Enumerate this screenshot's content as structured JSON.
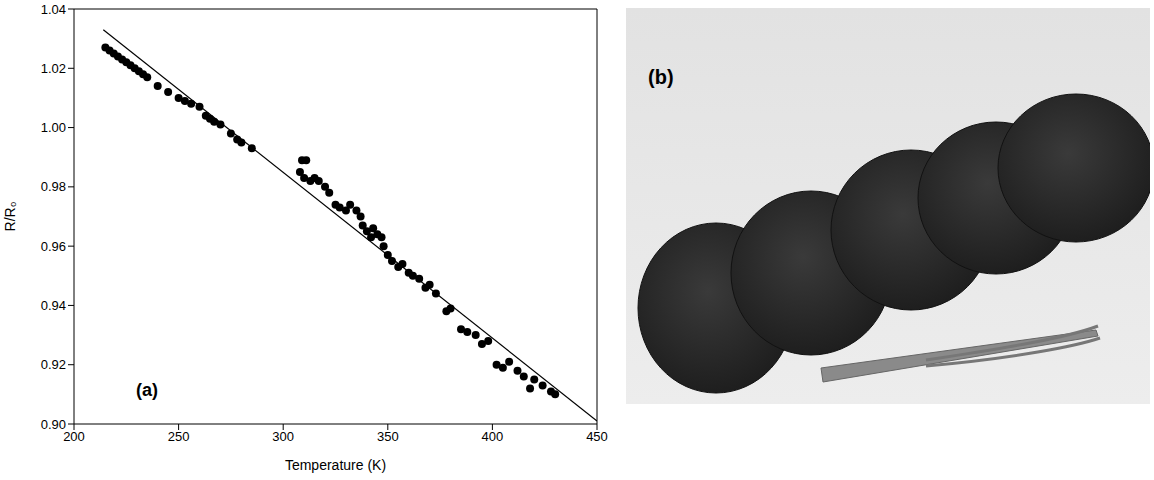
{
  "chart_data": {
    "type": "scatter",
    "panel_label": "(a)",
    "x_label": "Temperature (K)",
    "y_label": "R/R₀",
    "xlim": [
      200,
      450
    ],
    "xticks": [
      200,
      250,
      300,
      350,
      400,
      450
    ],
    "ylim": [
      0.9,
      1.04
    ],
    "yticks": [
      {
        "value": 0.9,
        "label": "0.90"
      },
      0.92,
      0.94,
      0.96,
      0.98,
      {
        "value": 1.0,
        "label": "1.00"
      },
      1.02,
      1.04
    ],
    "grid": false,
    "series": [
      {
        "type": "scatter",
        "color": "#000000",
        "marker": "circle",
        "x": [
          215,
          217,
          219,
          221,
          223,
          225,
          227,
          229,
          231,
          233,
          235,
          240,
          245,
          250,
          253,
          256,
          260,
          263,
          265,
          267,
          270,
          275,
          278,
          280,
          285,
          308,
          309,
          311,
          310,
          313,
          315,
          317,
          320,
          322,
          325,
          327,
          330,
          332,
          335,
          337,
          338,
          340,
          342,
          343,
          345,
          347,
          348,
          350,
          352,
          355,
          357,
          360,
          362,
          365,
          368,
          370,
          373,
          378,
          380,
          385,
          388,
          392,
          395,
          398,
          402,
          405,
          408,
          412,
          415,
          418,
          420,
          424,
          428,
          430
        ],
        "values": [
          1.027,
          1.026,
          1.025,
          1.024,
          1.023,
          1.022,
          1.021,
          1.02,
          1.019,
          1.018,
          1.017,
          1.014,
          1.012,
          1.01,
          1.009,
          1.008,
          1.007,
          1.004,
          1.003,
          1.002,
          1.001,
          0.998,
          0.996,
          0.995,
          0.993,
          0.985,
          0.989,
          0.989,
          0.983,
          0.982,
          0.983,
          0.982,
          0.98,
          0.978,
          0.974,
          0.973,
          0.972,
          0.974,
          0.972,
          0.97,
          0.967,
          0.965,
          0.963,
          0.966,
          0.964,
          0.963,
          0.96,
          0.957,
          0.955,
          0.953,
          0.954,
          0.951,
          0.95,
          0.949,
          0.946,
          0.947,
          0.944,
          0.938,
          0.939,
          0.932,
          0.931,
          0.93,
          0.927,
          0.928,
          0.92,
          0.919,
          0.921,
          0.918,
          0.916,
          0.912,
          0.915,
          0.913,
          0.911,
          0.91
        ]
      },
      {
        "type": "line",
        "color": "#000000",
        "line_style": "solid",
        "x": [
          214,
          450
        ],
        "values": [
          1.033,
          0.901
        ]
      }
    ]
  },
  "photo": {
    "label": "(b)"
  }
}
